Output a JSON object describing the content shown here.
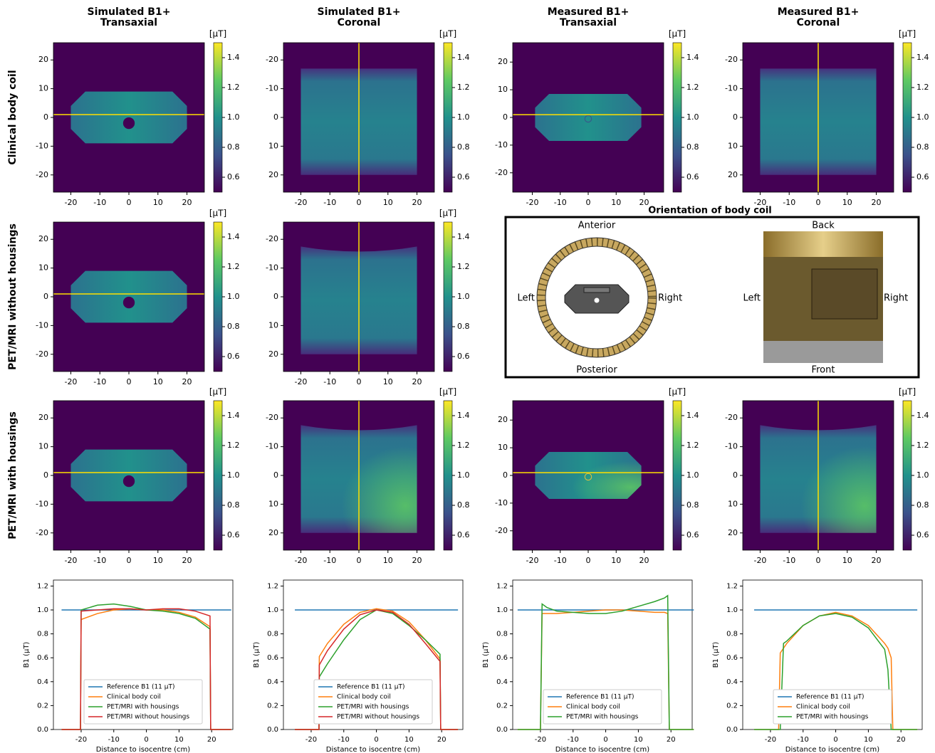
{
  "column_titles": [
    [
      "Simulated B1+",
      "Transaxial"
    ],
    [
      "Simulated B1+",
      "Coronal"
    ],
    [
      "Measured B1+",
      "Transaxial"
    ],
    [
      "Measured B1+",
      "Coronal"
    ]
  ],
  "row_labels": [
    "Clinical body coil",
    "PET/MRI without housings",
    "PET/MRI with housings"
  ],
  "diagram": {
    "title": "Orientation of body coil",
    "left_view": {
      "top": "Anterior",
      "bottom": "Posterior",
      "left": "Left",
      "right": "Right"
    },
    "right_view": {
      "top": "Back",
      "bottom": "Front",
      "left": "Left",
      "right": "Right"
    }
  },
  "chart_data": [
    {
      "type": "heatmap",
      "xlim": [
        -26,
        26
      ],
      "ylim": [
        -26,
        26
      ],
      "xticks": [
        -20,
        -10,
        0,
        10,
        20
      ],
      "yticks": [
        -20,
        -10,
        0,
        10,
        20
      ],
      "colorbar_label": "[µT]",
      "clim": [
        0.5,
        1.5
      ],
      "cticks": [
        0.6,
        0.8,
        {
          "value": 1,
          "label": "1.0"
        },
        1.2,
        1.4
      ]
    },
    {
      "type": "heatmap",
      "xlim": [
        -26,
        26
      ],
      "ylim": [
        26,
        -26
      ],
      "xticks": [
        -20,
        -10,
        0,
        10,
        20
      ],
      "yticks": [
        -20,
        -10,
        0,
        10,
        20
      ],
      "colorbar_label": "[µT]",
      "clim": [
        0.5,
        1.5
      ],
      "cticks": [
        0.6,
        0.8,
        {
          "value": 1,
          "label": "1.0"
        },
        1.2,
        1.4
      ]
    },
    {
      "type": "heatmap",
      "xlim": [
        -27,
        27
      ],
      "ylim": [
        -27,
        27
      ],
      "xticks": [
        -20,
        -10,
        0,
        10,
        20
      ],
      "yticks": [
        -20,
        -10,
        0,
        10,
        20
      ],
      "colorbar_label": "[µT]",
      "clim": [
        0.5,
        1.5
      ],
      "cticks": [
        0.6,
        0.8,
        {
          "value": 1,
          "label": "1.0"
        },
        1.2,
        1.4
      ]
    },
    {
      "type": "heatmap",
      "xlim": [
        -26,
        26
      ],
      "ylim": [
        26,
        -26
      ],
      "xticks": [
        -20,
        -10,
        0,
        10,
        20
      ],
      "yticks": [
        -20,
        -10,
        0,
        10,
        20
      ],
      "colorbar_label": "[µT]",
      "clim": [
        0.5,
        1.5
      ],
      "cticks": [
        0.6,
        0.8,
        {
          "value": 1,
          "label": "1.0"
        },
        1.2,
        1.4
      ]
    },
    {
      "type": "heatmap",
      "xlim": [
        -26,
        26
      ],
      "ylim": [
        -26,
        26
      ],
      "xticks": [
        -20,
        -10,
        0,
        10,
        20
      ],
      "yticks": [
        -20,
        -10,
        0,
        10,
        20
      ],
      "colorbar_label": "[µT]",
      "clim": [
        0.5,
        1.5
      ],
      "cticks": [
        0.6,
        0.8,
        {
          "value": 1,
          "label": "1.0"
        },
        1.2,
        1.4
      ]
    },
    {
      "type": "heatmap",
      "xlim": [
        -26,
        26
      ],
      "ylim": [
        26,
        -26
      ],
      "xticks": [
        -20,
        -10,
        0,
        10,
        20
      ],
      "yticks": [
        -20,
        -10,
        0,
        10,
        20
      ],
      "colorbar_label": "[µT]",
      "clim": [
        0.5,
        1.5
      ],
      "cticks": [
        0.6,
        0.8,
        {
          "value": 1,
          "label": "1.0"
        },
        1.2,
        1.4
      ]
    },
    {
      "type": "heatmap",
      "xlim": [
        -26,
        26
      ],
      "ylim": [
        -26,
        26
      ],
      "xticks": [
        -20,
        -10,
        0,
        10,
        20
      ],
      "yticks": [
        -20,
        -10,
        0,
        10,
        20
      ],
      "colorbar_label": "[µT]",
      "clim": [
        0.5,
        1.5
      ],
      "cticks": [
        0.6,
        0.8,
        {
          "value": 1,
          "label": "1.0"
        },
        1.2,
        1.4
      ]
    },
    {
      "type": "heatmap",
      "xlim": [
        -26,
        26
      ],
      "ylim": [
        26,
        -26
      ],
      "xticks": [
        -20,
        -10,
        0,
        10,
        20
      ],
      "yticks": [
        -20,
        -10,
        0,
        10,
        20
      ],
      "colorbar_label": "[µT]",
      "clim": [
        0.5,
        1.5
      ],
      "cticks": [
        0.6,
        0.8,
        {
          "value": 1,
          "label": "1.0"
        },
        1.2,
        1.4
      ]
    },
    {
      "type": "heatmap",
      "xlim": [
        -27,
        27
      ],
      "ylim": [
        -27,
        27
      ],
      "xticks": [
        -20,
        -10,
        0,
        10,
        20
      ],
      "yticks": [
        -20,
        -10,
        0,
        10,
        20
      ],
      "colorbar_label": "[µT]",
      "clim": [
        0.5,
        1.5
      ],
      "cticks": [
        0.6,
        0.8,
        {
          "value": 1,
          "label": "1.0"
        },
        1.2,
        1.4
      ]
    },
    {
      "type": "heatmap",
      "xlim": [
        -26,
        26
      ],
      "ylim": [
        26,
        -26
      ],
      "xticks": [
        -20,
        -10,
        0,
        10,
        20
      ],
      "yticks": [
        -20,
        -10,
        0,
        10,
        20
      ],
      "colorbar_label": "[µT]",
      "clim": [
        0.5,
        1.5
      ],
      "cticks": [
        0.6,
        0.8,
        {
          "value": 1,
          "label": "1.0"
        },
        1.2,
        1.4
      ]
    },
    {
      "type": "line",
      "xlabel": "Distance to isocentre (cm)",
      "ylabel": "B1 (µT)",
      "xlim": [
        -28.5,
        26.5
      ],
      "ylim": [
        0,
        1.25
      ],
      "xticks": [
        -20,
        -10,
        0,
        10,
        20
      ],
      "yticks": [
        {
          "value": 0,
          "label": "0.0"
        },
        0.2,
        0.4,
        0.6,
        0.8,
        {
          "value": 1,
          "label": "1.0"
        },
        1.2
      ],
      "legend": "lower center",
      "x": [
        -26,
        -20.2,
        -20,
        -15,
        -10,
        -5,
        0,
        5,
        10,
        15,
        19.5,
        19.7,
        26
      ],
      "series": [
        {
          "name": "Reference B1 (11 µT)",
          "color": "#1f77b4",
          "values": [
            1,
            1,
            1,
            1,
            1,
            1,
            1,
            1,
            1,
            1,
            1,
            1,
            1
          ]
        },
        {
          "name": "Clinical body coil",
          "color": "#ff7f0e",
          "values": [
            0,
            0,
            0.92,
            0.97,
            1.0,
            1.01,
            1.0,
            1.0,
            0.98,
            0.94,
            0.86,
            0,
            0
          ]
        },
        {
          "name": "PET/MRI with housings",
          "color": "#2ca02c",
          "values": [
            0,
            0,
            1.0,
            1.04,
            1.05,
            1.03,
            1.0,
            0.99,
            0.97,
            0.93,
            0.84,
            0,
            0
          ]
        },
        {
          "name": "PET/MRI without housings",
          "color": "#d62728",
          "values": [
            0,
            0,
            0.99,
            1.0,
            1.01,
            1.01,
            1.0,
            1.01,
            1.01,
            0.99,
            0.95,
            0,
            0
          ]
        }
      ]
    },
    {
      "type": "line",
      "xlabel": "Distance to isocentre (cm)",
      "ylabel": "B1 (µT)",
      "xlim": [
        -28.5,
        26.5
      ],
      "ylim": [
        0,
        1.25
      ],
      "xticks": [
        -20,
        -10,
        0,
        10,
        20
      ],
      "yticks": [
        {
          "value": 0,
          "label": "0.0"
        },
        0.2,
        0.4,
        0.6,
        0.8,
        {
          "value": 1,
          "label": "1.0"
        },
        1.2
      ],
      "legend": "lower center",
      "x": [
        -25,
        -17.6,
        -17.5,
        -15,
        -10,
        -5,
        0,
        5,
        10,
        15,
        19.5,
        19.7,
        25
      ],
      "series": [
        {
          "name": "Reference B1 (11 µT)",
          "color": "#1f77b4",
          "values": [
            1,
            1,
            1,
            1,
            1,
            1,
            1,
            1,
            1,
            1,
            1,
            1,
            1
          ]
        },
        {
          "name": "Clinical body coil",
          "color": "#ff7f0e",
          "values": [
            0,
            0,
            0.61,
            0.72,
            0.88,
            0.98,
            1.01,
            0.99,
            0.9,
            0.75,
            0.59,
            0,
            0
          ]
        },
        {
          "name": "PET/MRI with housings",
          "color": "#2ca02c",
          "values": [
            0,
            0,
            0.44,
            0.55,
            0.75,
            0.92,
            1.0,
            0.97,
            0.87,
            0.75,
            0.63,
            0,
            0
          ]
        },
        {
          "name": "PET/MRI without housings",
          "color": "#d62728",
          "values": [
            0,
            0,
            0.54,
            0.66,
            0.84,
            0.96,
            1.0,
            0.98,
            0.88,
            0.72,
            0.57,
            0,
            0
          ]
        }
      ]
    },
    {
      "type": "line",
      "xlabel": "Distance to isocentre (cm)",
      "ylabel": "B1 (µT)",
      "xlim": [
        -28.5,
        26.5
      ],
      "ylim": [
        0,
        1.25
      ],
      "xticks": [
        -20,
        -10,
        0,
        10,
        20
      ],
      "yticks": [
        {
          "value": 0,
          "label": "0.0"
        },
        0.2,
        0.4,
        0.6,
        0.8,
        {
          "value": 1,
          "label": "1.0"
        },
        1.2
      ],
      "legend": "lower center",
      "x": [
        -27,
        -20,
        -19.5,
        -18,
        -15,
        -10,
        -5,
        0,
        5,
        10,
        15,
        18,
        19,
        19.5,
        27
      ],
      "series": [
        {
          "name": "Reference B1 (11 µT)",
          "color": "#1f77b4",
          "values": [
            1,
            1,
            1,
            1,
            1,
            1,
            1,
            1,
            1,
            1,
            1,
            1,
            1,
            1,
            1
          ]
        },
        {
          "name": "Clinical body coil",
          "color": "#ff7f0e",
          "values": [
            0,
            0,
            0.97,
            0.97,
            0.97,
            0.98,
            0.99,
            1.0,
            1.0,
            0.99,
            0.98,
            0.98,
            0.97,
            0,
            0
          ]
        },
        {
          "name": "PET/MRI with housings",
          "color": "#2ca02c",
          "values": [
            0,
            0,
            1.05,
            1.02,
            0.99,
            0.98,
            0.97,
            0.97,
            0.99,
            1.03,
            1.07,
            1.1,
            1.12,
            0,
            0
          ]
        }
      ]
    },
    {
      "type": "line",
      "xlabel": "Distance to isocentre (cm)",
      "ylabel": "B1 (µT)",
      "xlim": [
        -28.5,
        26.5
      ],
      "ylim": [
        0,
        1.25
      ],
      "xticks": [
        -20,
        -10,
        0,
        10,
        20
      ],
      "yticks": [
        {
          "value": 0,
          "label": "0.0"
        },
        0.2,
        0.4,
        0.6,
        0.8,
        {
          "value": 1,
          "label": "1.0"
        },
        1.2
      ],
      "legend": "lower center",
      "x": [
        -25,
        -17.5,
        -17,
        -16,
        -15,
        -10,
        -5,
        0,
        5,
        10,
        15,
        16,
        17,
        17.5,
        25
      ],
      "series": [
        {
          "name": "Reference B1 (11 µT)",
          "color": "#1f77b4",
          "values": [
            1,
            1,
            1,
            1,
            1,
            1,
            1,
            1,
            1,
            1,
            1,
            1,
            1,
            1,
            1
          ]
        },
        {
          "name": "Clinical body coil",
          "color": "#ff7f0e",
          "values": [
            0,
            0,
            0.64,
            0.68,
            0.72,
            0.87,
            0.95,
            0.98,
            0.95,
            0.87,
            0.72,
            0.68,
            0.6,
            0,
            0
          ]
        },
        {
          "name": "PET/MRI with housings",
          "color": "#2ca02c",
          "values": [
            0,
            0,
            0,
            0.72,
            0.74,
            0.87,
            0.95,
            0.97,
            0.94,
            0.85,
            0.67,
            0.5,
            0,
            0,
            0
          ]
        }
      ]
    }
  ]
}
